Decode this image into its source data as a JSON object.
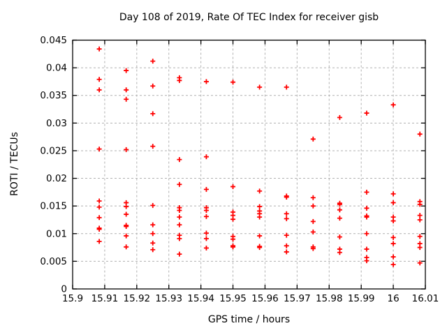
{
  "figure": {
    "title": "Day 108 of 2019, Rate Of TEC Index for receiver gisb",
    "xlabel": "GPS time / hours",
    "ylabel": "ROTI / TECUs"
  },
  "chart_data": {
    "type": "scatter",
    "title": "Day 108 of 2019, Rate Of TEC Index for receiver gisb",
    "xlabel": "GPS time / hours",
    "ylabel": "ROTI / TECUs",
    "xlim": [
      15.9,
      16.01
    ],
    "ylim": [
      0,
      0.045
    ],
    "xticks": {
      "values": [
        15.9,
        15.91,
        15.92,
        15.93,
        15.94,
        15.95,
        15.96,
        15.97,
        15.98,
        15.99,
        16.0,
        16.01
      ],
      "labels": [
        "15.9",
        "15.91",
        "15.92",
        "15.93",
        "15.94",
        "15.95",
        "15.96",
        "15.97",
        "15.98",
        "15.99",
        "16",
        "16.01"
      ]
    },
    "yticks": {
      "values": [
        0,
        0.005,
        0.01,
        0.015,
        0.02,
        0.025,
        0.03,
        0.035,
        0.04,
        0.045
      ],
      "labels": [
        "0",
        "0.005",
        "0.01",
        "0.015",
        "0.02",
        "0.025",
        "0.03",
        "0.035",
        "0.04",
        "0.045"
      ]
    },
    "grid": true,
    "legend": false,
    "marker": {
      "shape": "plus",
      "color": "#ff0000",
      "size": 7
    },
    "colors": {
      "background": "#ffffff",
      "axis": "#000000",
      "grid": "#b0b0b0",
      "marker": "#ff0000",
      "text": "#000000"
    },
    "points": [
      [
        15.9083,
        0.0434
      ],
      [
        15.9083,
        0.0379
      ],
      [
        15.9083,
        0.036
      ],
      [
        15.9083,
        0.0253
      ],
      [
        15.9083,
        0.0159
      ],
      [
        15.9083,
        0.0148
      ],
      [
        15.9083,
        0.0129
      ],
      [
        15.9083,
        0.011
      ],
      [
        15.9083,
        0.0108
      ],
      [
        15.9083,
        0.0086
      ],
      [
        15.9167,
        0.0395
      ],
      [
        15.9167,
        0.036
      ],
      [
        15.9167,
        0.0343
      ],
      [
        15.9167,
        0.0252
      ],
      [
        15.9167,
        0.0156
      ],
      [
        15.9167,
        0.0149
      ],
      [
        15.9167,
        0.0135
      ],
      [
        15.9167,
        0.0115
      ],
      [
        15.9167,
        0.0113
      ],
      [
        15.9167,
        0.0096
      ],
      [
        15.9167,
        0.0076
      ],
      [
        15.925,
        0.0412
      ],
      [
        15.925,
        0.0367
      ],
      [
        15.925,
        0.0317
      ],
      [
        15.925,
        0.0258
      ],
      [
        15.925,
        0.0151
      ],
      [
        15.925,
        0.0116
      ],
      [
        15.925,
        0.01
      ],
      [
        15.925,
        0.0083
      ],
      [
        15.925,
        0.0071
      ],
      [
        15.9333,
        0.0382
      ],
      [
        15.9333,
        0.0377
      ],
      [
        15.9333,
        0.0234
      ],
      [
        15.9333,
        0.0189
      ],
      [
        15.9333,
        0.0147
      ],
      [
        15.9333,
        0.0142
      ],
      [
        15.9333,
        0.013
      ],
      [
        15.9333,
        0.0116
      ],
      [
        15.9333,
        0.0097
      ],
      [
        15.9333,
        0.0091
      ],
      [
        15.9333,
        0.0063
      ],
      [
        15.9417,
        0.0375
      ],
      [
        15.9417,
        0.0239
      ],
      [
        15.9417,
        0.018
      ],
      [
        15.9417,
        0.0147
      ],
      [
        15.9417,
        0.0142
      ],
      [
        15.9417,
        0.0131
      ],
      [
        15.9417,
        0.0101
      ],
      [
        15.9417,
        0.0091
      ],
      [
        15.9417,
        0.0074
      ],
      [
        15.95,
        0.0374
      ],
      [
        15.95,
        0.0185
      ],
      [
        15.95,
        0.0139
      ],
      [
        15.95,
        0.0133
      ],
      [
        15.95,
        0.0126
      ],
      [
        15.95,
        0.0095
      ],
      [
        15.95,
        0.009
      ],
      [
        15.95,
        0.0078
      ],
      [
        15.95,
        0.0076
      ],
      [
        15.9583,
        0.0365
      ],
      [
        15.9583,
        0.0177
      ],
      [
        15.9583,
        0.0149
      ],
      [
        15.9583,
        0.0141
      ],
      [
        15.9583,
        0.0136
      ],
      [
        15.9583,
        0.013
      ],
      [
        15.9583,
        0.0096
      ],
      [
        15.9583,
        0.0077
      ],
      [
        15.9583,
        0.0075
      ],
      [
        15.9667,
        0.0365
      ],
      [
        15.9667,
        0.0168
      ],
      [
        15.9667,
        0.0166
      ],
      [
        15.9667,
        0.0136
      ],
      [
        15.9667,
        0.0127
      ],
      [
        15.9667,
        0.0097
      ],
      [
        15.9667,
        0.0078
      ],
      [
        15.9667,
        0.0067
      ],
      [
        15.975,
        0.0271
      ],
      [
        15.975,
        0.0165
      ],
      [
        15.975,
        0.015
      ],
      [
        15.975,
        0.0122
      ],
      [
        15.975,
        0.0103
      ],
      [
        15.975,
        0.0076
      ],
      [
        15.975,
        0.0073
      ],
      [
        15.9833,
        0.031
      ],
      [
        15.9833,
        0.0155
      ],
      [
        15.9833,
        0.0153
      ],
      [
        15.9833,
        0.0143
      ],
      [
        15.9833,
        0.0128
      ],
      [
        15.9833,
        0.0094
      ],
      [
        15.9833,
        0.0072
      ],
      [
        15.9833,
        0.0066
      ],
      [
        15.9917,
        0.0318
      ],
      [
        15.9917,
        0.0175
      ],
      [
        15.9917,
        0.0146
      ],
      [
        15.9917,
        0.0132
      ],
      [
        15.9917,
        0.013
      ],
      [
        15.9917,
        0.01
      ],
      [
        15.9917,
        0.0072
      ],
      [
        15.9917,
        0.0057
      ],
      [
        15.9917,
        0.0051
      ],
      [
        16.0,
        0.0333
      ],
      [
        16.0,
        0.0172
      ],
      [
        16.0,
        0.0156
      ],
      [
        16.0,
        0.013
      ],
      [
        16.0,
        0.0123
      ],
      [
        16.0,
        0.0093
      ],
      [
        16.0,
        0.0082
      ],
      [
        16.0,
        0.0058
      ],
      [
        16.0,
        0.0044
      ],
      [
        16.0083,
        0.028
      ],
      [
        16.0083,
        0.0158
      ],
      [
        16.0083,
        0.0153
      ],
      [
        16.0083,
        0.0133
      ],
      [
        16.0083,
        0.0125
      ],
      [
        16.0083,
        0.0095
      ],
      [
        16.0083,
        0.0082
      ],
      [
        16.0083,
        0.0075
      ],
      [
        16.0083,
        0.0047
      ]
    ]
  }
}
